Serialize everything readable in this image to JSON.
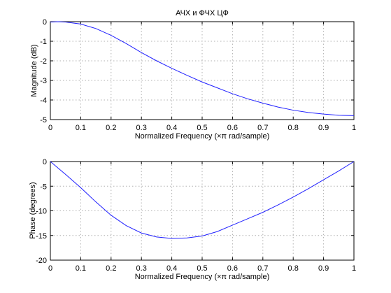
{
  "chart_data": [
    {
      "type": "line",
      "title": "АЧХ и ФЧХ ЦФ",
      "xlabel": "Normalized Frequency  (×π rad/sample)",
      "ylabel": "Magnitude (dB)",
      "xlim": [
        0,
        1
      ],
      "ylim": [
        -5,
        0
      ],
      "grid": true,
      "x_ticks": [
        "0",
        "0.1",
        "0.2",
        "0.3",
        "0.4",
        "0.5",
        "0.6",
        "0.7",
        "0.8",
        "0.9",
        "1"
      ],
      "y_ticks": [
        "0",
        "-1",
        "-2",
        "-3",
        "-4",
        "-5"
      ],
      "color": "#2020ff",
      "series": [
        {
          "x": [
            0,
            0.025,
            0.05,
            0.1,
            0.15,
            0.2,
            0.25,
            0.3,
            0.35,
            0.4,
            0.45,
            0.5,
            0.55,
            0.6,
            0.65,
            0.7,
            0.75,
            0.8,
            0.85,
            0.9,
            0.95,
            1.0
          ],
          "values": [
            -0.02,
            0.0,
            -0.02,
            -0.12,
            -0.35,
            -0.7,
            -1.12,
            -1.58,
            -2.0,
            -2.38,
            -2.74,
            -3.08,
            -3.38,
            -3.68,
            -3.94,
            -4.16,
            -4.36,
            -4.52,
            -4.64,
            -4.72,
            -4.78,
            -4.8
          ]
        }
      ]
    },
    {
      "type": "line",
      "title": "",
      "xlabel": "Normalized Frequency  (×π rad/sample)",
      "ylabel": "Phase (degrees)",
      "xlim": [
        0,
        1
      ],
      "ylim": [
        -20,
        0
      ],
      "grid": true,
      "x_ticks": [
        "0",
        "0.1",
        "0.2",
        "0.3",
        "0.4",
        "0.5",
        "0.6",
        "0.7",
        "0.8",
        "0.9",
        "1"
      ],
      "y_ticks": [
        "0",
        "-5",
        "-10",
        "-15",
        "-20"
      ],
      "color": "#2020ff",
      "series": [
        {
          "x": [
            0,
            0.05,
            0.1,
            0.15,
            0.2,
            0.25,
            0.3,
            0.35,
            0.4,
            0.45,
            0.5,
            0.55,
            0.6,
            0.65,
            0.7,
            0.75,
            0.8,
            0.85,
            0.9,
            0.95,
            1.0
          ],
          "values": [
            0,
            -2.6,
            -5.3,
            -8.2,
            -10.9,
            -13.0,
            -14.5,
            -15.3,
            -15.6,
            -15.5,
            -15.1,
            -14.2,
            -12.9,
            -11.6,
            -10.3,
            -8.8,
            -7.2,
            -5.5,
            -3.7,
            -1.9,
            0
          ]
        }
      ]
    }
  ]
}
